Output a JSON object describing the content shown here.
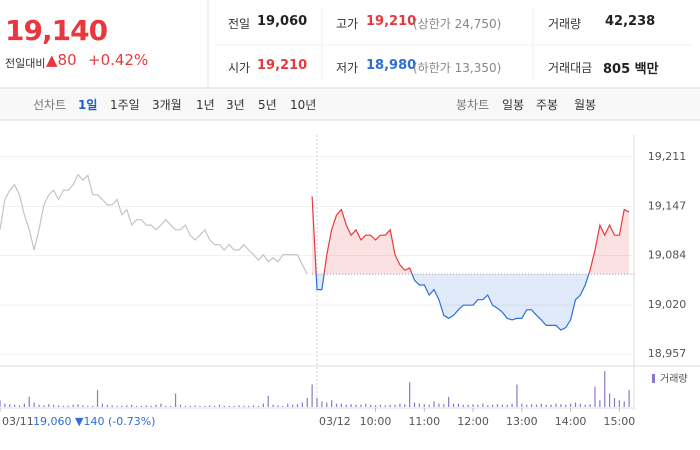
{
  "quote": {
    "price": "19,140",
    "change_label": "전일대비",
    "change": "▲80",
    "change_rate": "+0.42%"
  },
  "summary": [
    {
      "label": "전일",
      "value": "19,060"
    },
    {
      "label": "고가",
      "value": "19,210",
      "limit": "(상한가 24,750)"
    },
    {
      "label": "거래량",
      "value": "42,238"
    },
    {
      "label": "시가",
      "value": "19,210"
    },
    {
      "label": "저가",
      "value": "18,980",
      "limit": "(하한가 13,350)"
    },
    {
      "label": "거래대금",
      "value": "805 백만"
    }
  ],
  "tabs": {
    "line_chart_label": "선차트",
    "line_periods": [
      "1일",
      "1주일",
      "3개월",
      "1년",
      "3년",
      "5년",
      "10년"
    ],
    "candle_label": "봉차트",
    "candle_periods": [
      "일봉",
      "주봉",
      "월봉"
    ]
  },
  "chart_data": {
    "type": "line",
    "annotation": "19,060 ▼140 (-0.73%)",
    "volume_label": "거래량",
    "volume_color": "#8e76c8",
    "baseline": 19060,
    "grid": true,
    "xlim": [
      0,
      130
    ],
    "xticks": [
      {
        "value": 0,
        "label": "03/11"
      },
      {
        "value": 65,
        "label": "03/12"
      },
      {
        "value": 77,
        "label": "10:00"
      },
      {
        "value": 87,
        "label": "11:00"
      },
      {
        "value": 97,
        "label": "12:00"
      },
      {
        "value": 107,
        "label": "13:00"
      },
      {
        "value": 117,
        "label": "14:00"
      },
      {
        "value": 127,
        "label": "15:00"
      }
    ],
    "ylim": [
      18943,
      19239
    ],
    "yticks": [
      {
        "value": 19211,
        "label": "19,211"
      },
      {
        "value": 19147,
        "label": "19,147"
      },
      {
        "value": 19084,
        "label": "19,084"
      },
      {
        "value": 19020,
        "label": "19,020"
      },
      {
        "value": 18957,
        "label": "18,957"
      }
    ],
    "series": [
      {
        "color": "#c4c4c4",
        "x": [
          0,
          1,
          2,
          3,
          4,
          5,
          6,
          7,
          8,
          9,
          10,
          11,
          12,
          13,
          14,
          15,
          16,
          17,
          18,
          19,
          20,
          21,
          22,
          23,
          24,
          25,
          26,
          27,
          28,
          29,
          30,
          31,
          32,
          33,
          34,
          35,
          36,
          37,
          38,
          39,
          40,
          41,
          42,
          43,
          44,
          45,
          46,
          47,
          48,
          49,
          50,
          51,
          52,
          53,
          54,
          55,
          56,
          57,
          58,
          59,
          60,
          61,
          62,
          63
        ],
        "values": [
          19117,
          19156,
          19168,
          19175,
          19162,
          19136,
          19117,
          19091,
          19117,
          19149,
          19162,
          19168,
          19156,
          19168,
          19168,
          19175,
          19188,
          19181,
          19187,
          19162,
          19162,
          19156,
          19149,
          19149,
          19156,
          19136,
          19143,
          19123,
          19130,
          19130,
          19123,
          19123,
          19117,
          19123,
          19130,
          19123,
          19117,
          19117,
          19123,
          19110,
          19104,
          19110,
          19117,
          19104,
          19098,
          19098,
          19091,
          19098,
          19091,
          19091,
          19098,
          19091,
          19085,
          19078,
          19085,
          19076,
          19081,
          19076,
          19085,
          19085,
          19085,
          19085,
          19072,
          19060
        ],
        "volume": [
          600,
          300,
          250,
          200,
          150,
          300,
          900,
          400,
          200,
          150,
          250,
          200,
          150,
          100,
          120,
          200,
          250,
          150,
          100,
          100,
          1500,
          300,
          200,
          150,
          100,
          100,
          150,
          200,
          100,
          100,
          150,
          100,
          200,
          300,
          100,
          100,
          1200,
          200,
          100,
          100,
          150,
          100,
          100,
          150,
          100,
          200,
          100,
          100,
          100,
          150,
          100,
          100,
          150,
          100,
          300,
          1000,
          200,
          150,
          100,
          300,
          200,
          250,
          400,
          800
        ]
      },
      {
        "color": "#e8383d",
        "down_color": "#2d6fd6",
        "x": [
          64,
          65,
          66,
          67,
          68,
          69,
          70,
          71,
          72,
          73,
          74,
          75,
          76,
          77,
          78,
          79,
          80,
          81,
          82,
          83,
          84,
          85,
          86,
          87,
          88,
          89,
          90,
          91,
          92,
          93,
          94,
          95,
          96,
          97,
          98,
          99,
          100,
          101,
          102,
          103,
          104,
          105,
          106,
          107,
          108,
          109,
          110,
          111,
          112,
          113,
          114,
          115,
          116,
          117,
          118,
          119,
          120,
          121,
          122,
          123,
          124,
          125,
          126,
          127,
          128,
          129
        ],
        "values": [
          19160,
          19040,
          19040,
          19085,
          19117,
          19136,
          19143,
          19123,
          19110,
          19117,
          19104,
          19110,
          19110,
          19104,
          19110,
          19110,
          19117,
          19085,
          19072,
          19065,
          19068,
          19052,
          19046,
          19046,
          19033,
          19040,
          19027,
          19007,
          19003,
          19007,
          19014,
          19020,
          19020,
          19020,
          19027,
          19027,
          19033,
          19020,
          19016,
          19011,
          19003,
          19001,
          19003,
          19003,
          19014,
          19014,
          19007,
          19001,
          18994,
          18994,
          18994,
          18988,
          18991,
          19001,
          19027,
          19033,
          19046,
          19065,
          19091,
          19123,
          19110,
          19123,
          19110,
          19110,
          19143,
          19140
        ],
        "volume": [
          2000,
          800,
          500,
          400,
          600,
          300,
          300,
          200,
          250,
          200,
          200,
          300,
          200,
          150,
          200,
          150,
          200,
          200,
          300,
          250,
          2200,
          400,
          300,
          250,
          200,
          500,
          300,
          250,
          900,
          300,
          300,
          200,
          200,
          250,
          200,
          300,
          150,
          200,
          250,
          200,
          200,
          300,
          2000,
          300,
          200,
          250,
          200,
          300,
          200,
          200,
          300,
          250,
          200,
          300,
          400,
          300,
          200,
          250,
          1800,
          600,
          3200,
          1200,
          800,
          600,
          500,
          1500
        ]
      }
    ]
  }
}
